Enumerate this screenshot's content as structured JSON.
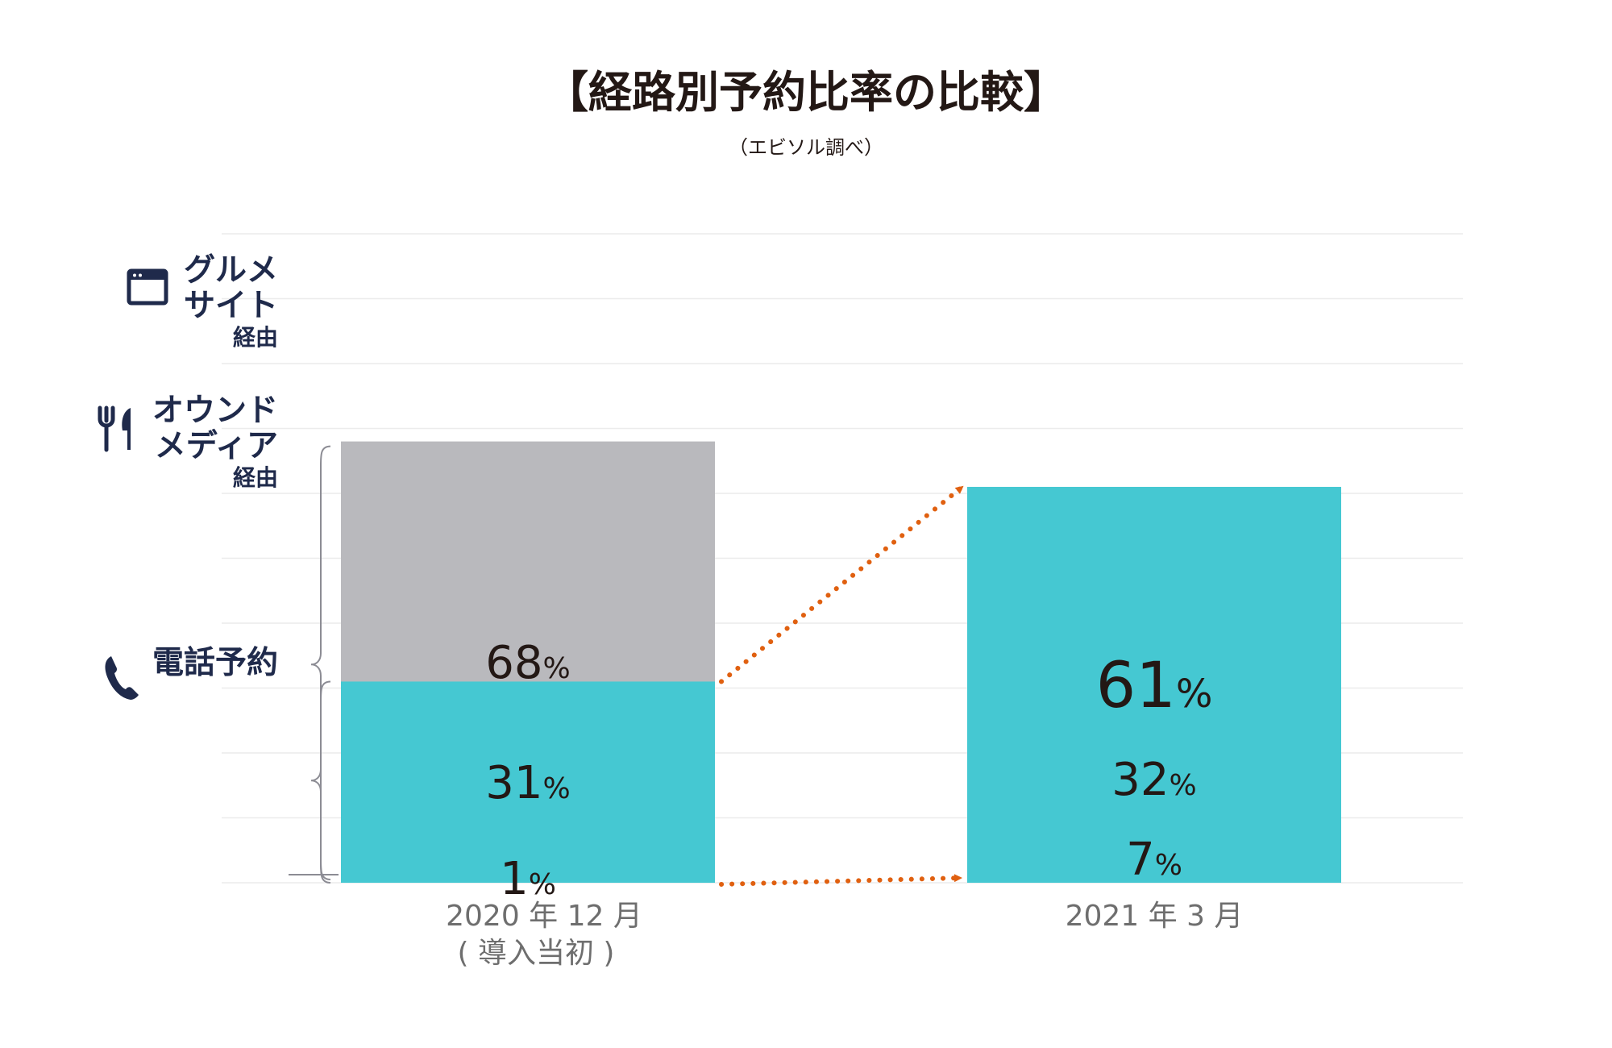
{
  "chart_data": {
    "type": "bar",
    "stacked": true,
    "normalized": true,
    "title": "【経路別予約比率の比較】",
    "subtitle": "（エビソル調べ）",
    "categories": [
      {
        "line1": "2020 年 12 月",
        "line2": "( 導入当初 )"
      },
      {
        "line1": "2021 年 3 月",
        "line2": ""
      }
    ],
    "series": [
      {
        "name": "電話予約",
        "values": [
          68,
          32
        ],
        "color": "#b9b9bd"
      },
      {
        "name": "オウンドメディア経由",
        "values": [
          1,
          7
        ],
        "color": "#f0a000"
      },
      {
        "name": "グルメサイト経由",
        "values": [
          31,
          61
        ],
        "color": "#45c8d2"
      }
    ],
    "value_suffix": "%",
    "ylim": [
      0,
      100
    ],
    "grid": true,
    "legend": {
      "position": "left",
      "items": [
        {
          "lines": [
            "グルメ",
            "サイト"
          ],
          "sub": "経由",
          "icon": "browser-window-icon",
          "series": 2
        },
        {
          "lines": [
            "オウンド",
            "メディア"
          ],
          "sub": "経由",
          "icon": "fork-knife-icon",
          "series": 1
        },
        {
          "lines": [
            "電話予約"
          ],
          "sub": "",
          "icon": "phone-icon",
          "series": 0
        }
      ]
    },
    "arrow_color": "#e06010"
  }
}
